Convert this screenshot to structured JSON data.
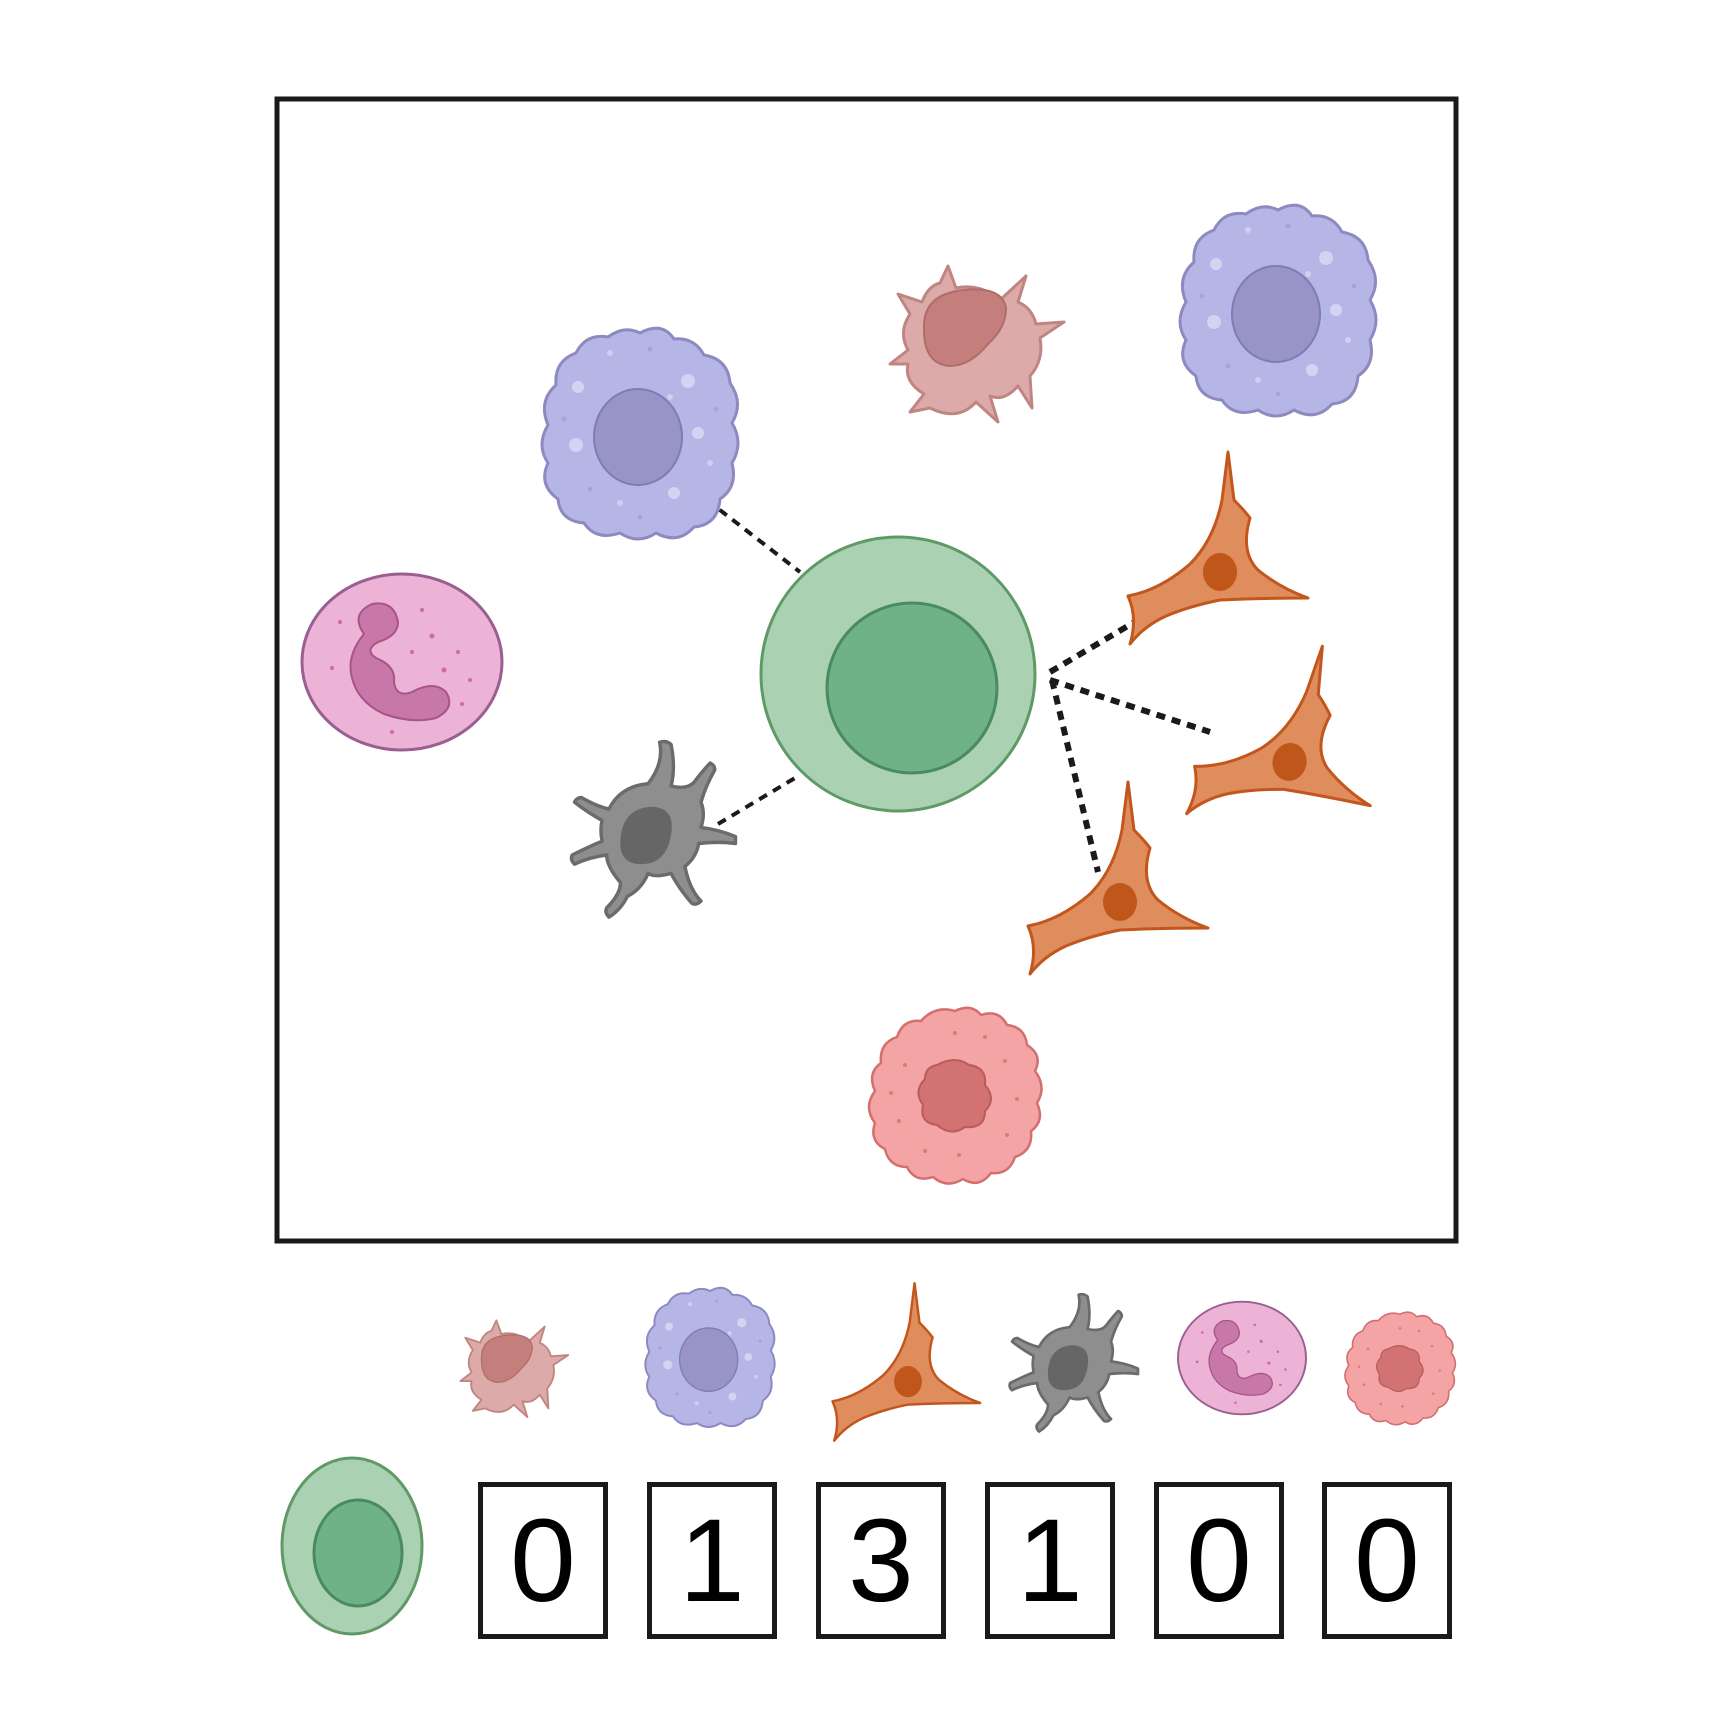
{
  "diagram": {
    "center_cell": "t-cell-icon",
    "cell_types": [
      {
        "icon": "fibroblast-pink-cell-icon",
        "color": "#dcaaa9"
      },
      {
        "icon": "macrophage-cell-icon",
        "color": "#b6b6e6"
      },
      {
        "icon": "smooth-muscle-cell-icon",
        "color": "#df8d5d"
      },
      {
        "icon": "dendritic-cell-icon",
        "color": "#8e8e8e"
      },
      {
        "icon": "neutrophil-cell-icon",
        "color": "#edb3d6"
      },
      {
        "icon": "mast-cell-icon",
        "color": "#f4a4a4"
      }
    ],
    "counts": [
      "0",
      "1",
      "3",
      "1",
      "0",
      "0"
    ]
  }
}
